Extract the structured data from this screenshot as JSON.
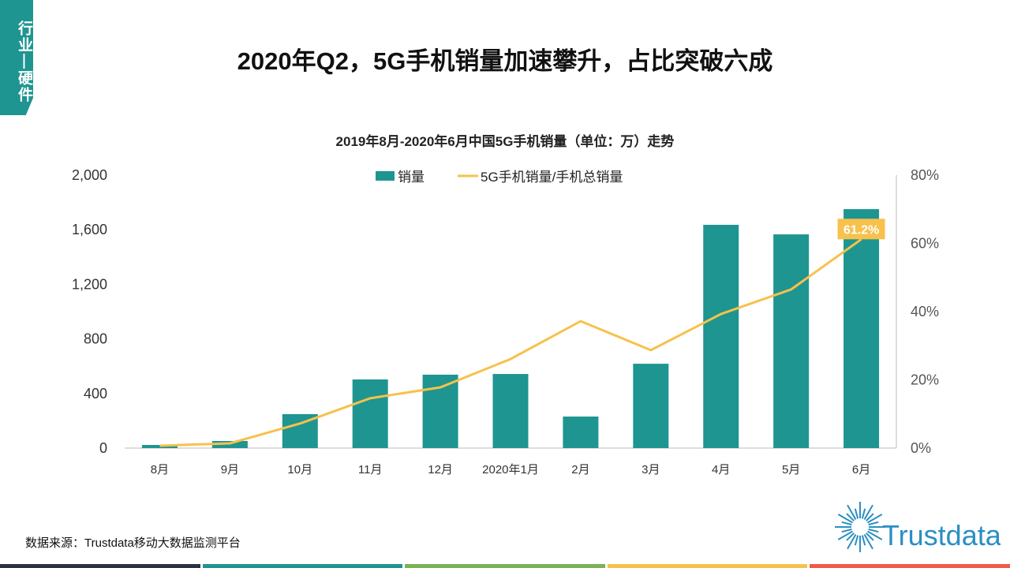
{
  "badge": "行业—硬件",
  "title": "2020年Q2，5G手机销量加速攀升，占比突破六成",
  "source": "数据来源：Trustdata移动大数据监测平台",
  "logo_text": "Trustdata",
  "stripe_colors": [
    "#2b3340",
    "#1e9590",
    "#7ab356",
    "#f7c14c",
    "#f05a47"
  ],
  "chart_data": {
    "type": "bar+line",
    "title": "2019年8月-2020年6月中国5G手机销量（单位：万）走势",
    "categories": [
      "8月",
      "9月",
      "10月",
      "11月",
      "12月",
      "2020年1月",
      "2月",
      "3月",
      "4月",
      "5月",
      "6月"
    ],
    "series": [
      {
        "name": "销量",
        "type": "bar",
        "axis": "left",
        "color": "#1e9590",
        "values": [
          23,
          52,
          249,
          503,
          538,
          543,
          231,
          618,
          1636,
          1566,
          1751
        ]
      },
      {
        "name": "5G手机销量/手机总销量",
        "type": "line",
        "axis": "right",
        "color": "#f7c14c",
        "values": [
          0.7,
          1.4,
          7.2,
          14.6,
          17.8,
          26.1,
          37.2,
          28.7,
          39.3,
          46.5,
          61.2
        ]
      }
    ],
    "y_left": {
      "range": [
        0,
        2000
      ],
      "ticks": [
        "0",
        "400",
        "800",
        "1,200",
        "1,600",
        "2,000"
      ]
    },
    "y_right": {
      "range": [
        0,
        80
      ],
      "ticks": [
        "0%",
        "20%",
        "40%",
        "60%",
        "80%"
      ]
    },
    "annotation": "61.2%",
    "legend_position": "top",
    "grid": false
  }
}
